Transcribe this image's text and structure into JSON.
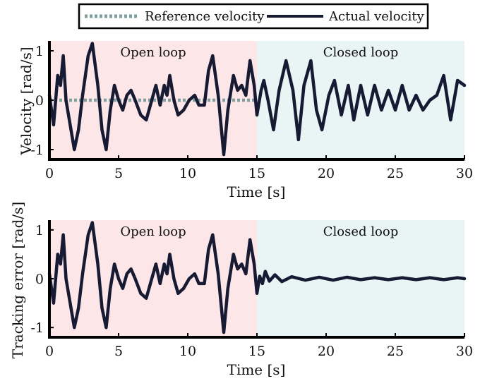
{
  "legend": {
    "reference_label": "Reference velocity",
    "actual_label": "Actual velocity"
  },
  "colors": {
    "open_loop_bg": "#fde6e8",
    "closed_loop_bg": "#e9f4f5",
    "actual_line": "#161a33",
    "reference_line": "#7f9e9e",
    "axis": "#000000"
  },
  "chart_data": [
    {
      "type": "line",
      "ylabel": "Velocity [rad/s]",
      "xlabel": "Time [s]",
      "xlim": [
        0,
        30
      ],
      "ylim": [
        -1.2,
        1.2
      ],
      "xticks": [
        "0",
        "5",
        "10",
        "15",
        "20",
        "25",
        "30"
      ],
      "yticks": [
        "-1",
        "0",
        "1"
      ],
      "regions": [
        {
          "label": "Open loop",
          "x": [
            0,
            15
          ],
          "color": "#fde6e8"
        },
        {
          "label": "Closed loop",
          "x": [
            15,
            30
          ],
          "color": "#e9f4f5"
        }
      ],
      "series": [
        {
          "name": "Reference velocity",
          "style": "dotted",
          "color": "#7f9e9e",
          "x": [
            0,
            15
          ],
          "y": [
            0,
            0
          ]
        },
        {
          "name": "Actual velocity",
          "style": "solid",
          "color": "#161a33",
          "x": [
            0,
            0.3,
            0.6,
            0.8,
            1.0,
            1.2,
            1.5,
            1.8,
            2.1,
            2.4,
            2.8,
            3.1,
            3.5,
            3.8,
            4.1,
            4.4,
            4.7,
            5.0,
            5.3,
            5.6,
            5.9,
            6.2,
            6.6,
            7.0,
            7.4,
            7.7,
            8.0,
            8.3,
            8.5,
            8.7,
            9.0,
            9.3,
            9.7,
            10.1,
            10.5,
            10.8,
            11.2,
            11.5,
            11.8,
            12.2,
            12.6,
            12.9,
            13.3,
            13.6,
            13.9,
            14.2,
            14.5,
            14.8,
            15.0,
            15.3,
            15.5,
            15.8,
            16.2,
            16.6,
            17.1,
            17.6,
            18.0,
            18.4,
            18.9,
            19.3,
            19.7,
            20.2,
            20.6,
            21.1,
            21.6,
            22.0,
            22.5,
            23.0,
            23.5,
            24.0,
            24.5,
            25.0,
            25.5,
            26.0,
            26.5,
            27.0,
            27.5,
            28.0,
            28.5,
            29.0,
            29.5,
            30.0
          ],
          "y": [
            0.1,
            -0.5,
            0.5,
            0.3,
            0.9,
            0.0,
            -0.5,
            -1.0,
            -0.6,
            0.1,
            0.9,
            1.15,
            0.3,
            -0.6,
            -1.0,
            -0.2,
            0.3,
            0.0,
            -0.2,
            0.1,
            0.2,
            0.0,
            -0.3,
            -0.4,
            0.0,
            0.3,
            -0.1,
            0.3,
            0.1,
            0.5,
            0.0,
            -0.3,
            -0.2,
            0.0,
            0.1,
            -0.1,
            -0.1,
            0.6,
            0.9,
            0.1,
            -1.1,
            -0.2,
            0.5,
            0.2,
            0.3,
            0.1,
            0.8,
            0.3,
            -0.3,
            0.2,
            0.4,
            0.0,
            -0.6,
            0.2,
            0.8,
            0.2,
            -0.8,
            0.3,
            0.8,
            -0.2,
            -0.6,
            0.1,
            0.4,
            -0.3,
            0.3,
            -0.4,
            0.3,
            -0.3,
            0.3,
            -0.2,
            0.2,
            -0.2,
            0.3,
            -0.2,
            0.1,
            -0.2,
            0.0,
            0.1,
            0.5,
            -0.4,
            0.4,
            0.3
          ]
        }
      ]
    },
    {
      "type": "line",
      "ylabel": "Tracking error [rad/s]",
      "xlabel": "Time [s]",
      "xlim": [
        0,
        30
      ],
      "ylim": [
        -1.2,
        1.2
      ],
      "xticks": [
        "0",
        "5",
        "10",
        "15",
        "20",
        "25",
        "30"
      ],
      "yticks": [
        "-1",
        "0",
        "1"
      ],
      "regions": [
        {
          "label": "Open loop",
          "x": [
            0,
            15
          ],
          "color": "#fde6e8"
        },
        {
          "label": "Closed loop",
          "x": [
            15,
            30
          ],
          "color": "#e9f4f5"
        }
      ],
      "series": [
        {
          "name": "Tracking error",
          "style": "solid",
          "color": "#161a33",
          "x": [
            0,
            0.3,
            0.6,
            0.8,
            1.0,
            1.2,
            1.5,
            1.8,
            2.1,
            2.4,
            2.8,
            3.1,
            3.5,
            3.8,
            4.1,
            4.4,
            4.7,
            5.0,
            5.3,
            5.6,
            5.9,
            6.2,
            6.6,
            7.0,
            7.4,
            7.7,
            8.0,
            8.3,
            8.5,
            8.7,
            9.0,
            9.3,
            9.7,
            10.1,
            10.5,
            10.8,
            11.2,
            11.5,
            11.8,
            12.2,
            12.6,
            12.9,
            13.3,
            13.6,
            13.9,
            14.2,
            14.5,
            14.8,
            15.0,
            15.2,
            15.4,
            15.6,
            15.9,
            16.3,
            16.8,
            17.5,
            18.5,
            19.5,
            20.5,
            21.5,
            22.5,
            23.5,
            24.5,
            25.5,
            26.5,
            27.5,
            28.5,
            29.5,
            30.0
          ],
          "y": [
            0.1,
            -0.5,
            0.5,
            0.3,
            0.9,
            0.0,
            -0.5,
            -1.0,
            -0.6,
            0.1,
            0.9,
            1.15,
            0.3,
            -0.6,
            -1.0,
            -0.2,
            0.3,
            0.0,
            -0.2,
            0.1,
            0.2,
            0.0,
            -0.3,
            -0.4,
            0.0,
            0.3,
            -0.1,
            0.3,
            0.1,
            0.5,
            0.0,
            -0.3,
            -0.2,
            0.0,
            0.1,
            -0.1,
            -0.1,
            0.6,
            0.9,
            0.1,
            -1.1,
            -0.2,
            0.5,
            0.2,
            0.3,
            0.1,
            0.8,
            0.3,
            -0.3,
            0.05,
            -0.1,
            0.15,
            -0.05,
            0.08,
            -0.06,
            0.04,
            -0.03,
            0.03,
            -0.03,
            0.03,
            -0.02,
            0.02,
            -0.02,
            0.02,
            -0.02,
            0.02,
            -0.02,
            0.02,
            0.0
          ]
        }
      ]
    }
  ]
}
